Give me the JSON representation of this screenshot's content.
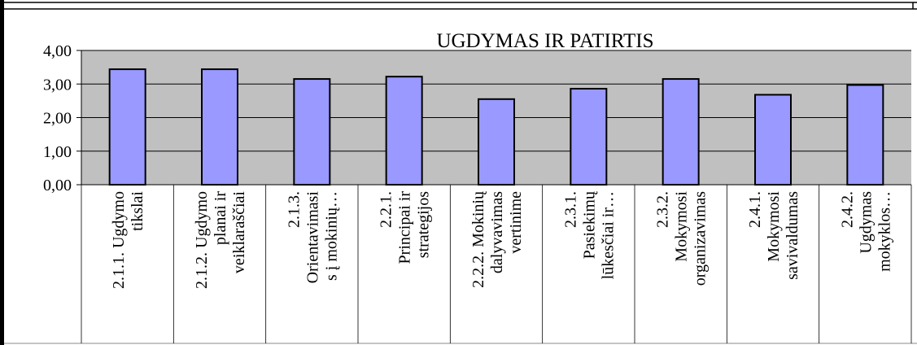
{
  "chart_data": {
    "type": "bar",
    "title": "UGDYMAS IR PATIRTIS",
    "categories": [
      [
        "2.1.1. Ugdymo",
        "tikslai"
      ],
      [
        "2.1.2. Ugdymo",
        "planai ir",
        "veiklaraščiai"
      ],
      [
        "2.1.3.",
        "Orientavimasi",
        "s į mokinių…"
      ],
      [
        "2.2.1.",
        "Principai ir",
        "strategijos"
      ],
      [
        "2.2.2. Mokinių",
        "dalyvavimas",
        "vertinime"
      ],
      [
        "2.3.1.",
        "Pasiekimų",
        "lūkesčiai ir…"
      ],
      [
        "2.3.2.",
        "Mokymosi",
        "organizavimas"
      ],
      [
        "2.4.1.",
        "Mokymosi",
        "savivaldumas"
      ],
      [
        "2.4.2.",
        "Ugdymas",
        "mokyklos…"
      ]
    ],
    "values": [
      3.44,
      3.44,
      3.15,
      3.22,
      2.55,
      2.86,
      3.15,
      2.68,
      2.97
    ],
    "color": "#9999ff",
    "ylim": [
      0,
      4
    ],
    "yticks": [
      {
        "value": 0,
        "label": "0,00"
      },
      {
        "value": 1,
        "label": "1,00"
      },
      {
        "value": 2,
        "label": "2,00"
      },
      {
        "value": 3,
        "label": "3,00"
      },
      {
        "value": 4,
        "label": "4,00"
      }
    ],
    "grid": true
  }
}
